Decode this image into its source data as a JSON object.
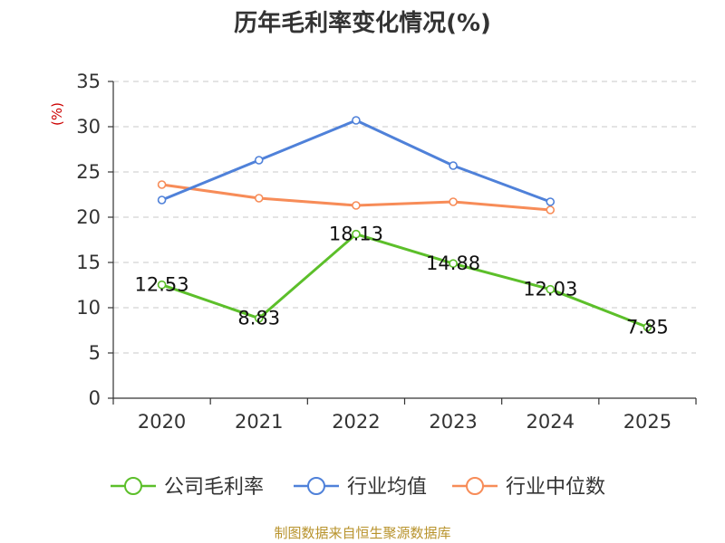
{
  "chart_data": {
    "type": "line",
    "title": "历年毛利率变化情况(%)",
    "ylabel": "(%)",
    "xlabel": "",
    "categories": [
      "2020",
      "2021",
      "2022",
      "2023",
      "2024",
      "2025"
    ],
    "ylim": [
      0,
      35
    ],
    "yticks": [
      0,
      5,
      10,
      15,
      20,
      25,
      30,
      35
    ],
    "grid": true,
    "legend_position": "bottom",
    "series": [
      {
        "name": "公司毛利率",
        "color": "#5cbf2a",
        "values": [
          12.53,
          8.83,
          18.13,
          14.88,
          12.03,
          7.85
        ],
        "labels": [
          "12.53",
          "8.83",
          "18.13",
          "14.88",
          "12.03",
          "7.85"
        ]
      },
      {
        "name": "行业均值",
        "color": "#4f81d9",
        "values": [
          21.9,
          26.3,
          30.7,
          25.7,
          21.7,
          null
        ]
      },
      {
        "name": "行业中位数",
        "color": "#f78c58",
        "values": [
          23.6,
          22.1,
          21.3,
          21.7,
          20.8,
          null
        ]
      }
    ],
    "source": "制图数据来自恒生聚源数据库"
  }
}
